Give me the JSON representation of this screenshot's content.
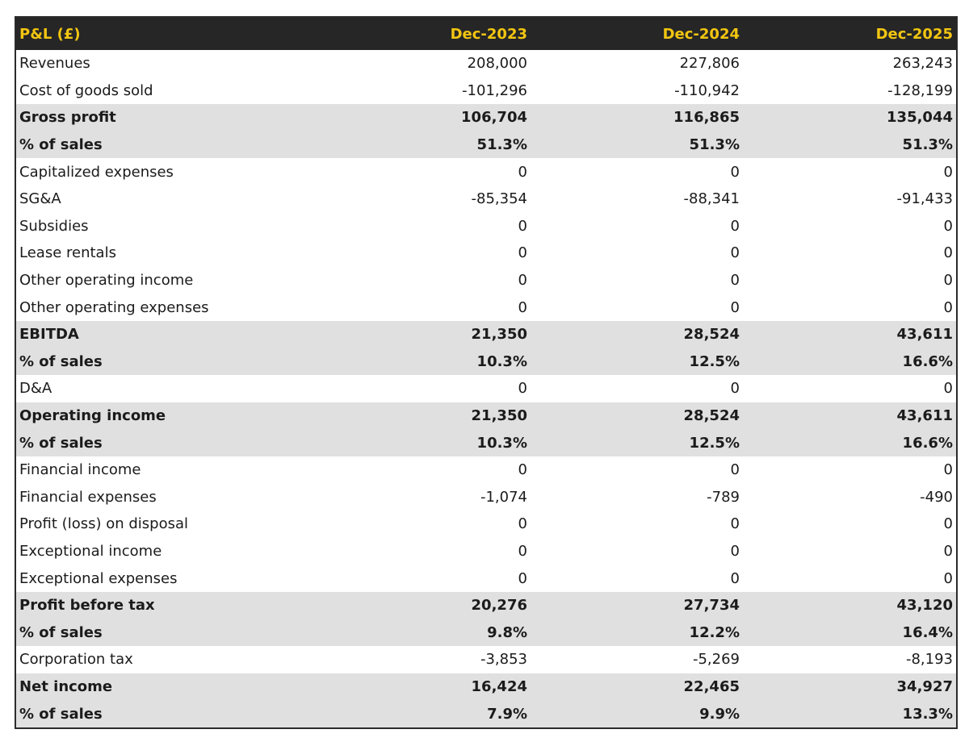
{
  "table": {
    "header": {
      "label": "P&L (£)",
      "col1": "Dec-2023",
      "col2": "Dec-2024",
      "col3": "Dec-2025"
    },
    "rows": [
      {
        "label": "Revenues",
        "v1": "208,000",
        "v2": "227,806",
        "v3": "263,243",
        "bold": false
      },
      {
        "label": "Cost of goods sold",
        "v1": "-101,296",
        "v2": "-110,942",
        "v3": "-128,199",
        "bold": false
      },
      {
        "label": "Gross profit",
        "v1": "106,704",
        "v2": "116,865",
        "v3": "135,044",
        "bold": true
      },
      {
        "label": "% of sales",
        "v1": "51.3%",
        "v2": "51.3%",
        "v3": "51.3%",
        "bold": true
      },
      {
        "label": "Capitalized expenses",
        "v1": "0",
        "v2": "0",
        "v3": "0",
        "bold": false
      },
      {
        "label": "SG&A",
        "v1": "-85,354",
        "v2": "-88,341",
        "v3": "-91,433",
        "bold": false
      },
      {
        "label": "Subsidies",
        "v1": "0",
        "v2": "0",
        "v3": "0",
        "bold": false
      },
      {
        "label": "Lease rentals",
        "v1": "0",
        "v2": "0",
        "v3": "0",
        "bold": false
      },
      {
        "label": "Other operating income",
        "v1": "0",
        "v2": "0",
        "v3": "0",
        "bold": false
      },
      {
        "label": "Other operating expenses",
        "v1": "0",
        "v2": "0",
        "v3": "0",
        "bold": false
      },
      {
        "label": "EBITDA",
        "v1": "21,350",
        "v2": "28,524",
        "v3": "43,611",
        "bold": true
      },
      {
        "label": "% of sales",
        "v1": "10.3%",
        "v2": "12.5%",
        "v3": "16.6%",
        "bold": true
      },
      {
        "label": "D&A",
        "v1": "0",
        "v2": "0",
        "v3": "0",
        "bold": false
      },
      {
        "label": "Operating income",
        "v1": "21,350",
        "v2": "28,524",
        "v3": "43,611",
        "bold": true
      },
      {
        "label": "% of sales",
        "v1": "10.3%",
        "v2": "12.5%",
        "v3": "16.6%",
        "bold": true
      },
      {
        "label": "Financial income",
        "v1": "0",
        "v2": "0",
        "v3": "0",
        "bold": false
      },
      {
        "label": "Financial expenses",
        "v1": "-1,074",
        "v2": "-789",
        "v3": "-490",
        "bold": false
      },
      {
        "label": "Profit (loss) on disposal",
        "v1": "0",
        "v2": "0",
        "v3": "0",
        "bold": false
      },
      {
        "label": "Exceptional income",
        "v1": "0",
        "v2": "0",
        "v3": "0",
        "bold": false
      },
      {
        "label": "Exceptional expenses",
        "v1": "0",
        "v2": "0",
        "v3": "0",
        "bold": false
      },
      {
        "label": "Profit before tax",
        "v1": "20,276",
        "v2": "27,734",
        "v3": "43,120",
        "bold": true
      },
      {
        "label": "% of sales",
        "v1": "9.8%",
        "v2": "12.2%",
        "v3": "16.4%",
        "bold": true
      },
      {
        "label": "Corporation tax",
        "v1": "-3,853",
        "v2": "-5,269",
        "v3": "-8,193",
        "bold": false
      },
      {
        "label": "Net income",
        "v1": "16,424",
        "v2": "22,465",
        "v3": "34,927",
        "bold": true
      },
      {
        "label": "% of sales",
        "v1": "7.9%",
        "v2": "9.9%",
        "v3": "13.3%",
        "bold": true
      }
    ]
  },
  "colors": {
    "header_bg": "#262626",
    "header_text": "#f2c511",
    "highlight_row_bg": "#e0e0e0"
  }
}
